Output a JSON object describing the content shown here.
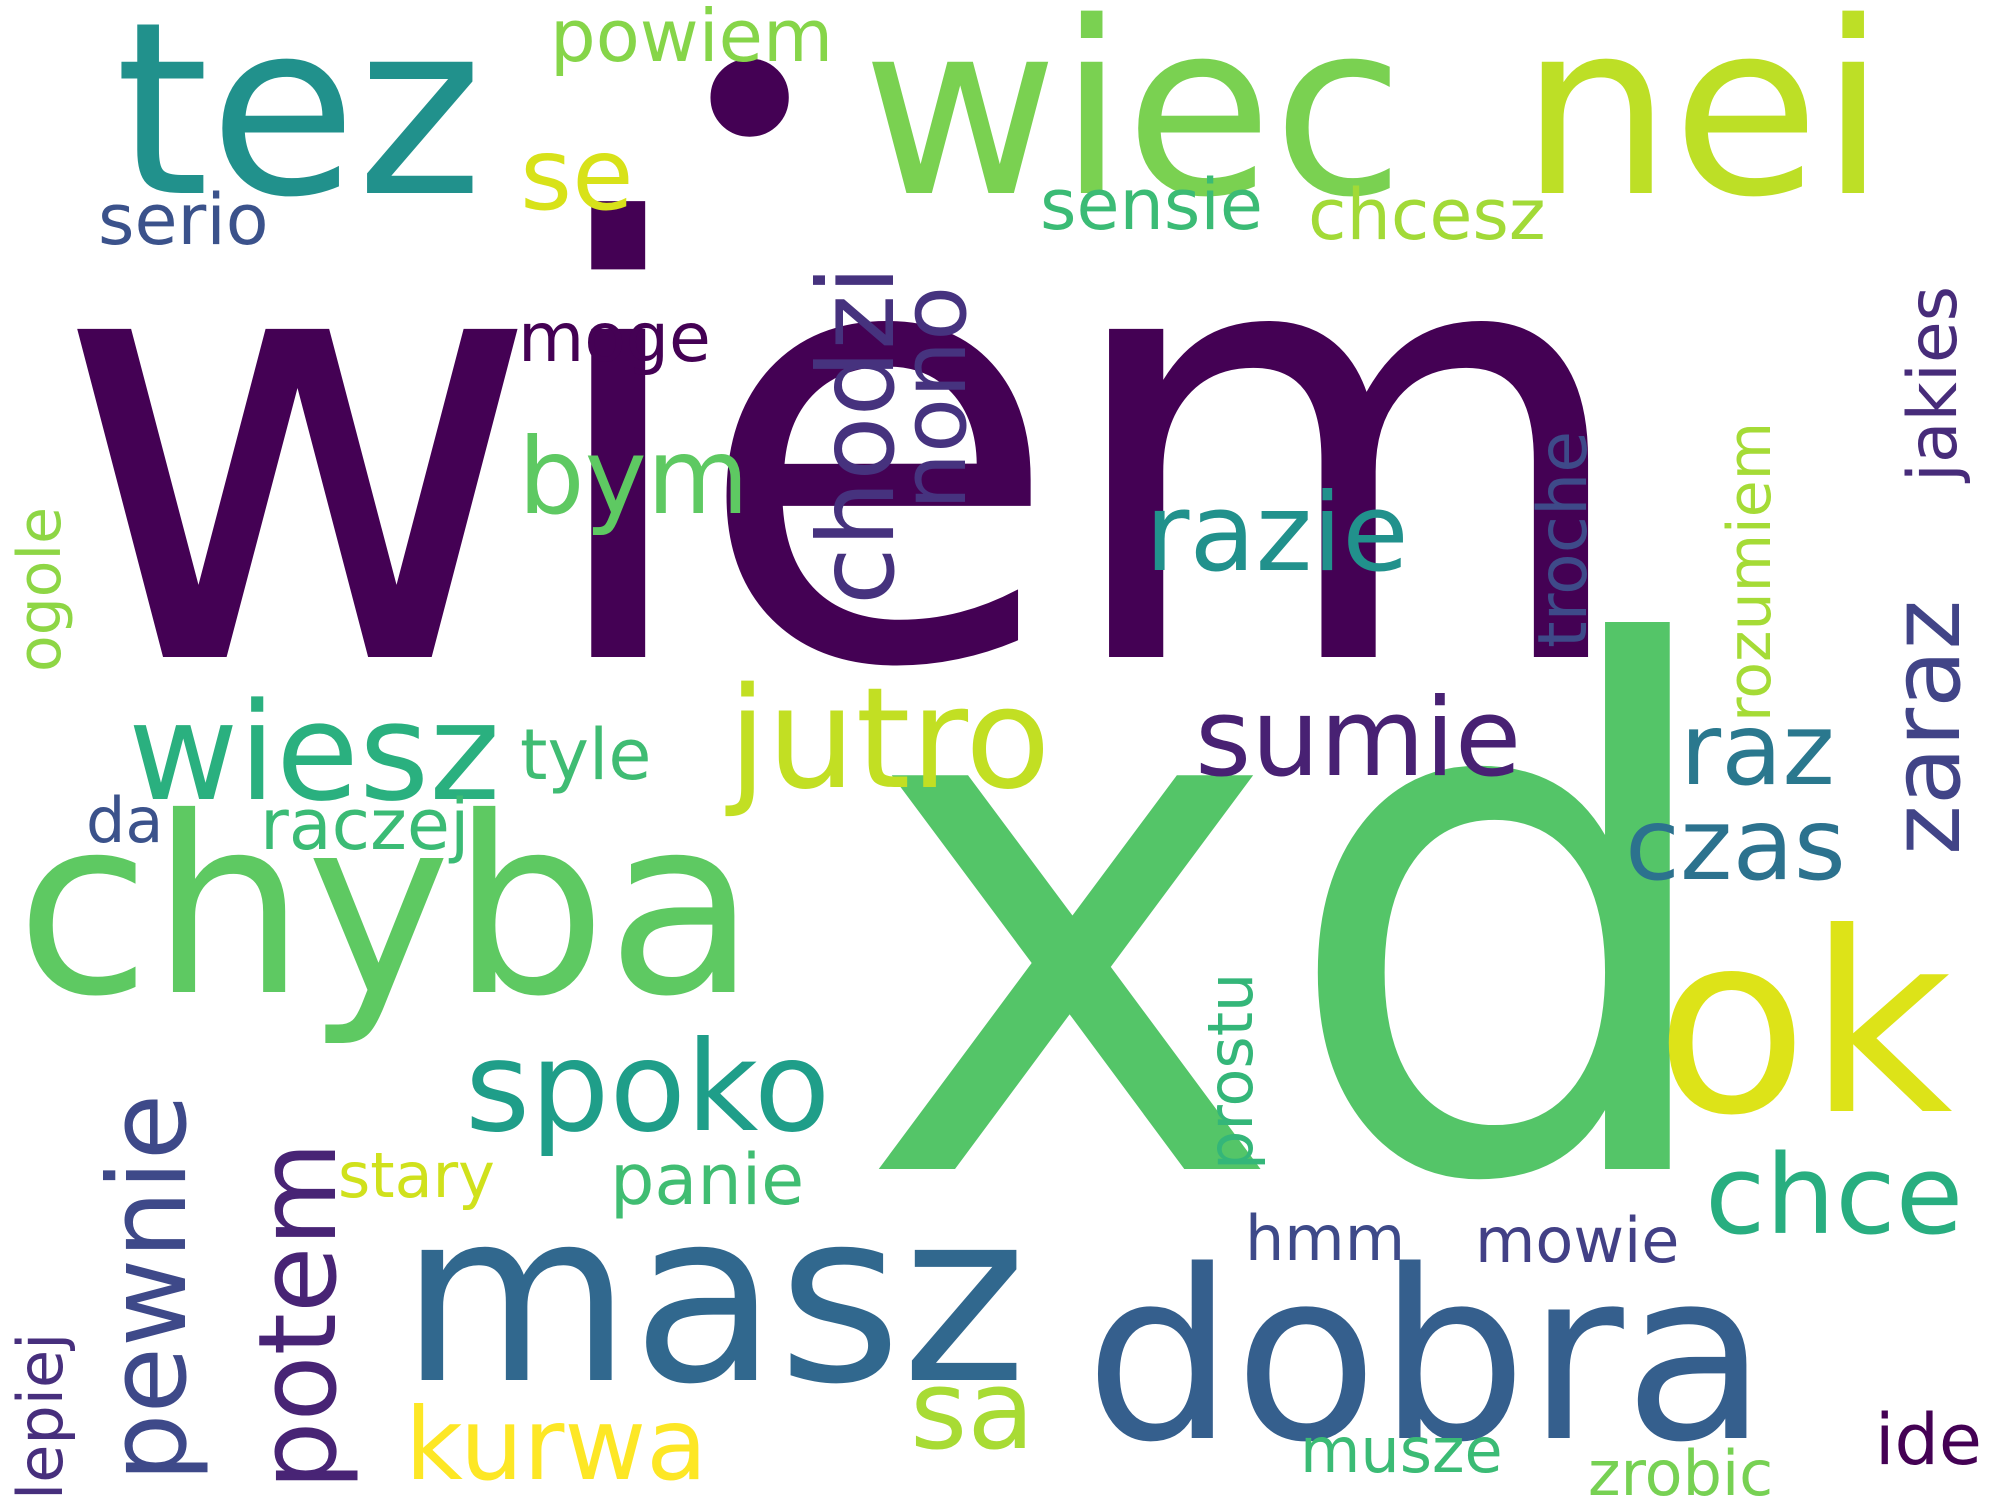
{
  "words": {
    "wiem": "wiem",
    "xd": "xd",
    "chyba": "chyba",
    "masz": "masz",
    "dobra": "dobra",
    "ok": "ok",
    "tez": "tez",
    "dot": "•",
    "wiec": "wiec",
    "nei": "nei",
    "jutro": "jutro",
    "wiesz": "wiesz",
    "spoko": "spoko",
    "sumie": "sumie",
    "razie": "razie",
    "bym": "bym",
    "se": "se",
    "powiem": "powiem",
    "sensie": "sensie",
    "chcesz": "chcesz",
    "serio": "serio",
    "moge": "moge",
    "chodzi": "chodzi",
    "nono": "nono",
    "troche": "troche",
    "rozumiem": "rozumiem",
    "zaraz": "zaraz",
    "jakies": "jakies",
    "raz": "raz",
    "czas": "czas",
    "ogole": "ogole",
    "tyle": "tyle",
    "da": "da",
    "raczej": "raczej",
    "pewnie": "pewnie",
    "potem": "potem",
    "stary": "stary",
    "panie": "panie",
    "prostu": "prostu",
    "chce": "chce",
    "hmm": "hmm",
    "mowie": "mowie",
    "kurwa": "kurwa",
    "sa": "sa",
    "lepiej": "lepiej",
    "musze": "musze",
    "zrobic": "zrobic",
    "ide": "ide"
  },
  "colors": {
    "wiem": "#440154",
    "xd": "#54c568",
    "chyba": "#5ec962",
    "masz": "#31688e",
    "dobra": "#355f8d",
    "ok": "#dde318",
    "tez": "#21918c",
    "dot": "#440154",
    "wiec": "#7ad151",
    "nei": "#bddf26",
    "jutro": "#c2df23",
    "wiesz": "#2ab07f",
    "spoko": "#1f9e89",
    "sumie": "#482173",
    "razie": "#21918c",
    "bym": "#5ec962",
    "se": "#d8e219",
    "powiem": "#86d549",
    "sensie": "#3bbb75",
    "chcesz": "#a2da37",
    "serio": "#3b528b",
    "moge": "#440154",
    "chodzi": "#46327e",
    "nono": "#46337f",
    "troche": "#3e4a89",
    "rozumiem": "#a5db36",
    "zaraz": "#414487",
    "jakies": "#472c7a",
    "raz": "#2a788e",
    "czas": "#2c728e",
    "ogole": "#8ed645",
    "tyle": "#3fbc73",
    "da": "#3b528b",
    "raczej": "#3bbb75",
    "pewnie": "#3e4989",
    "potem": "#482475",
    "stary": "#d0e11c",
    "panie": "#40bd72",
    "prostu": "#34b679",
    "chce": "#28ae80",
    "hmm": "#3e4a89",
    "mowie": "#424086",
    "kurwa": "#fde725",
    "sa": "#a8db34",
    "lepiej": "#472f7d",
    "musze": "#3bbb75",
    "zrobic": "#77d153",
    "ide": "#440154"
  }
}
